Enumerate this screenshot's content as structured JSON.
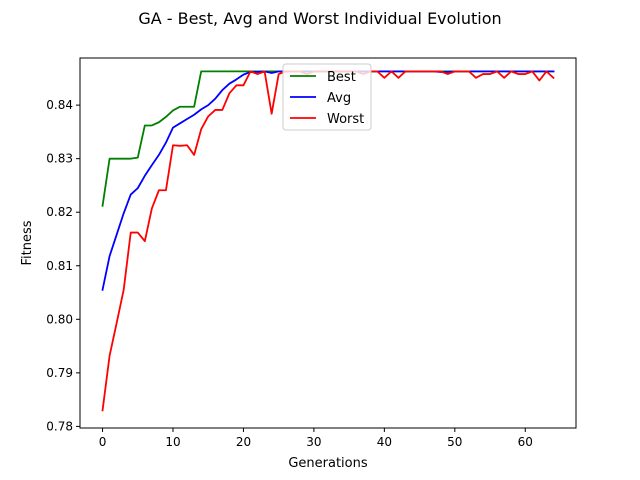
{
  "chart_data": {
    "type": "line",
    "title": "GA - Best, Avg and Worst Individual Evolution",
    "xlabel": "Generations",
    "ylabel": "Fitness",
    "xlim": [
      -3.2,
      67.2
    ],
    "ylim": [
      0.7797,
      0.8488
    ],
    "xticks": [
      0,
      10,
      20,
      30,
      40,
      50,
      60
    ],
    "yticks": [
      0.78,
      0.79,
      0.8,
      0.81,
      0.82,
      0.83,
      0.84
    ],
    "ytick_labels": [
      "0.78",
      "0.79",
      "0.80",
      "0.81",
      "0.82",
      "0.83",
      "0.84"
    ],
    "grid": false,
    "legend_position": "upper center",
    "series": [
      {
        "name": "Best",
        "color": "#008000",
        "values": [
          0.8212,
          0.83,
          0.83,
          0.83,
          0.83,
          0.8302,
          0.8362,
          0.8362,
          0.8368,
          0.8378,
          0.839,
          0.8397,
          0.8397,
          0.8397,
          0.8463,
          0.8463,
          0.8463,
          0.8463,
          0.8463,
          0.8463,
          0.8463,
          0.8463,
          0.8463,
          0.8463,
          0.8463,
          0.8463,
          0.8463,
          0.8463,
          0.8463,
          0.8463,
          0.8463,
          0.8463,
          0.8463,
          0.8463,
          0.8463,
          0.8463,
          0.8463,
          0.8463,
          0.8463,
          0.8463,
          0.8463,
          0.8463,
          0.8463,
          0.8463,
          0.8463,
          0.8463,
          0.8463,
          0.8463,
          0.8463,
          0.8463,
          0.8463,
          0.8463,
          0.8463,
          0.8463,
          0.8463,
          0.8463,
          0.8463,
          0.8463,
          0.8463,
          0.8463,
          0.8463,
          0.8463,
          0.8463,
          0.8463,
          0.8463
        ]
      },
      {
        "name": "Avg",
        "color": "#0000ff",
        "values": [
          0.8055,
          0.8118,
          0.8158,
          0.8198,
          0.8233,
          0.8245,
          0.8268,
          0.8288,
          0.8307,
          0.833,
          0.8358,
          0.8366,
          0.8374,
          0.8382,
          0.8392,
          0.84,
          0.8412,
          0.8428,
          0.844,
          0.8448,
          0.8457,
          0.8462,
          0.8462,
          0.8463,
          0.846,
          0.8463,
          0.8463,
          0.8463,
          0.8463,
          0.8463,
          0.8463,
          0.8463,
          0.8463,
          0.8463,
          0.8463,
          0.8463,
          0.8463,
          0.8463,
          0.8463,
          0.8463,
          0.8463,
          0.8463,
          0.8463,
          0.8463,
          0.8463,
          0.8463,
          0.8463,
          0.8463,
          0.8462,
          0.8462,
          0.8463,
          0.8463,
          0.8463,
          0.8463,
          0.8463,
          0.8463,
          0.8463,
          0.8463,
          0.8463,
          0.8463,
          0.8463,
          0.8463,
          0.8463,
          0.8463,
          0.8463
        ]
      },
      {
        "name": "Worst",
        "color": "#ff0000",
        "values": [
          0.783,
          0.7932,
          0.7993,
          0.8055,
          0.8162,
          0.8162,
          0.8146,
          0.8207,
          0.8241,
          0.8241,
          0.8325,
          0.8324,
          0.8325,
          0.8307,
          0.8355,
          0.8379,
          0.8391,
          0.8391,
          0.8422,
          0.8437,
          0.8437,
          0.8463,
          0.8458,
          0.8463,
          0.8384,
          0.8458,
          0.8463,
          0.8463,
          0.8463,
          0.8458,
          0.8463,
          0.8463,
          0.8463,
          0.8463,
          0.8463,
          0.8463,
          0.8463,
          0.8458,
          0.8463,
          0.8463,
          0.8451,
          0.8463,
          0.8451,
          0.8463,
          0.8463,
          0.8463,
          0.8463,
          0.8463,
          0.8463,
          0.8458,
          0.8463,
          0.8463,
          0.8463,
          0.8451,
          0.8458,
          0.8458,
          0.8463,
          0.8451,
          0.8463,
          0.8458,
          0.8458,
          0.8463,
          0.8446,
          0.8463,
          0.8451
        ]
      }
    ]
  }
}
